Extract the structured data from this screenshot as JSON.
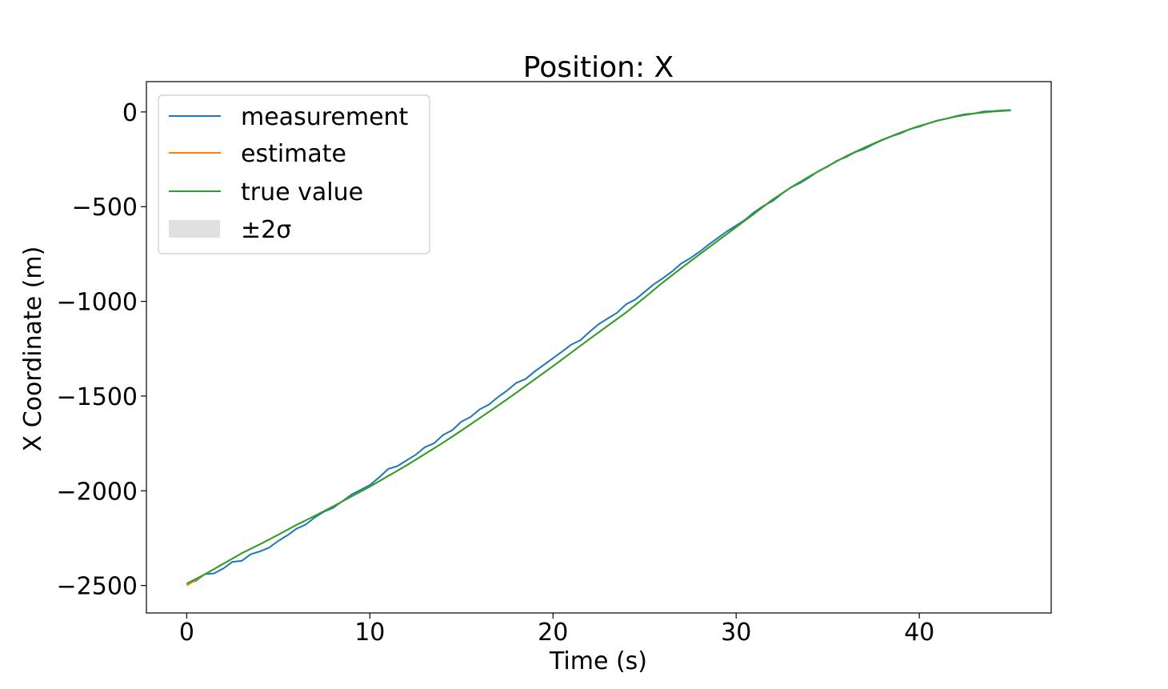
{
  "chart_data": {
    "type": "line",
    "title": "Position: X",
    "xlabel": "Time (s)",
    "ylabel": "X Coordinate (m)",
    "xlim": [
      -2.2,
      47.2
    ],
    "ylim": [
      -2645,
      160
    ],
    "x_ticks": [
      0,
      10,
      20,
      30,
      40
    ],
    "y_ticks": [
      0,
      -500,
      -1000,
      -1500,
      -2000,
      -2500
    ],
    "x_tick_labels": [
      "0",
      "10",
      "20",
      "30",
      "40"
    ],
    "y_tick_labels": [
      "0",
      "−500",
      "−1000",
      "−1500",
      "−2000",
      "−2500"
    ],
    "grid": false,
    "legend_position": "upper-left",
    "legend": [
      {
        "label": "measurement",
        "color": "#1f77b4",
        "kind": "line"
      },
      {
        "label": "estimate",
        "color": "#ff7f0e",
        "kind": "line"
      },
      {
        "label": "true value",
        "color": "#2ca02c",
        "kind": "line"
      },
      {
        "label": "±2σ",
        "color": "#e0e0e0",
        "kind": "patch"
      }
    ],
    "series": [
      {
        "name": "measurement",
        "color": "#1f77b4",
        "x": [
          0,
          0.5,
          1,
          1.5,
          2,
          2.5,
          3,
          3.5,
          4,
          4.5,
          5,
          5.5,
          6,
          6.5,
          7,
          7.5,
          8,
          8.5,
          9,
          9.5,
          10,
          10.5,
          11,
          11.5,
          12,
          12.5,
          13,
          13.5,
          14,
          14.5,
          15,
          15.5,
          16,
          16.5,
          17,
          17.5,
          18,
          18.5,
          19,
          19.5,
          20,
          20.5,
          21,
          21.5,
          22,
          22.5,
          23,
          23.5,
          24,
          24.5,
          25,
          25.5,
          26,
          26.5,
          27,
          27.5,
          28,
          28.5,
          29,
          29.5,
          30,
          30.5,
          31,
          31.5,
          32,
          32.5,
          33,
          33.5,
          34,
          34.5,
          35,
          35.5,
          36,
          36.5,
          37,
          37.5,
          38,
          38.5,
          39,
          39.5,
          40,
          40.5,
          41,
          41.5,
          42,
          42.5,
          43,
          43.5,
          44,
          44.5,
          45
        ],
        "y": [
          -2490,
          -2475,
          -2440,
          -2436,
          -2410,
          -2375,
          -2370,
          -2335,
          -2320,
          -2300,
          -2265,
          -2235,
          -2200,
          -2178,
          -2140,
          -2110,
          -2090,
          -2055,
          -2020,
          -1995,
          -1970,
          -1930,
          -1885,
          -1870,
          -1840,
          -1810,
          -1770,
          -1750,
          -1705,
          -1680,
          -1635,
          -1610,
          -1570,
          -1545,
          -1505,
          -1470,
          -1430,
          -1410,
          -1370,
          -1335,
          -1300,
          -1265,
          -1228,
          -1205,
          -1160,
          -1120,
          -1090,
          -1060,
          -1015,
          -990,
          -950,
          -910,
          -878,
          -842,
          -800,
          -772,
          -738,
          -700,
          -665,
          -630,
          -600,
          -568,
          -528,
          -495,
          -470,
          -432,
          -398,
          -375,
          -345,
          -312,
          -288,
          -258,
          -238,
          -212,
          -195,
          -170,
          -148,
          -128,
          -112,
          -90,
          -78,
          -60,
          -45,
          -35,
          -22,
          -12,
          -8,
          2,
          4,
          8,
          10
        ]
      },
      {
        "name": "estimate",
        "color": "#ff7f0e",
        "x": [
          0,
          1,
          2,
          3,
          4,
          5,
          6,
          7,
          8,
          9,
          10,
          11,
          12,
          13,
          14,
          15,
          16,
          17,
          18,
          19,
          20,
          21,
          22,
          23,
          24,
          25,
          26,
          27,
          28,
          29,
          30,
          31,
          32,
          33,
          34,
          35,
          36,
          37,
          38,
          39,
          40,
          41,
          42,
          43,
          44,
          45
        ],
        "y": [
          -2500,
          -2440,
          -2385,
          -2330,
          -2282,
          -2232,
          -2180,
          -2132,
          -2082,
          -2030,
          -1978,
          -1922,
          -1866,
          -1806,
          -1746,
          -1682,
          -1616,
          -1550,
          -1482,
          -1412,
          -1342,
          -1270,
          -1198,
          -1128,
          -1058,
          -980,
          -900,
          -825,
          -752,
          -680,
          -608,
          -536,
          -462,
          -398,
          -340,
          -286,
          -234,
          -188,
          -146,
          -108,
          -74,
          -46,
          -24,
          -8,
          2,
          8
        ]
      },
      {
        "name": "true value",
        "color": "#2ca02c",
        "x": [
          0,
          1,
          2,
          3,
          4,
          5,
          6,
          7,
          8,
          9,
          10,
          11,
          12,
          13,
          14,
          15,
          16,
          17,
          18,
          19,
          20,
          21,
          22,
          23,
          24,
          25,
          26,
          27,
          28,
          29,
          30,
          31,
          32,
          33,
          34,
          35,
          36,
          37,
          38,
          39,
          40,
          41,
          42,
          43,
          44,
          45
        ],
        "y": [
          -2490,
          -2440,
          -2385,
          -2330,
          -2282,
          -2232,
          -2180,
          -2132,
          -2082,
          -2030,
          -1978,
          -1922,
          -1866,
          -1806,
          -1746,
          -1682,
          -1616,
          -1550,
          -1482,
          -1412,
          -1342,
          -1270,
          -1198,
          -1128,
          -1058,
          -980,
          -900,
          -825,
          -752,
          -680,
          -608,
          -536,
          -462,
          -398,
          -340,
          -286,
          -234,
          -188,
          -146,
          -108,
          -74,
          -46,
          -24,
          -8,
          2,
          8
        ]
      }
    ]
  }
}
